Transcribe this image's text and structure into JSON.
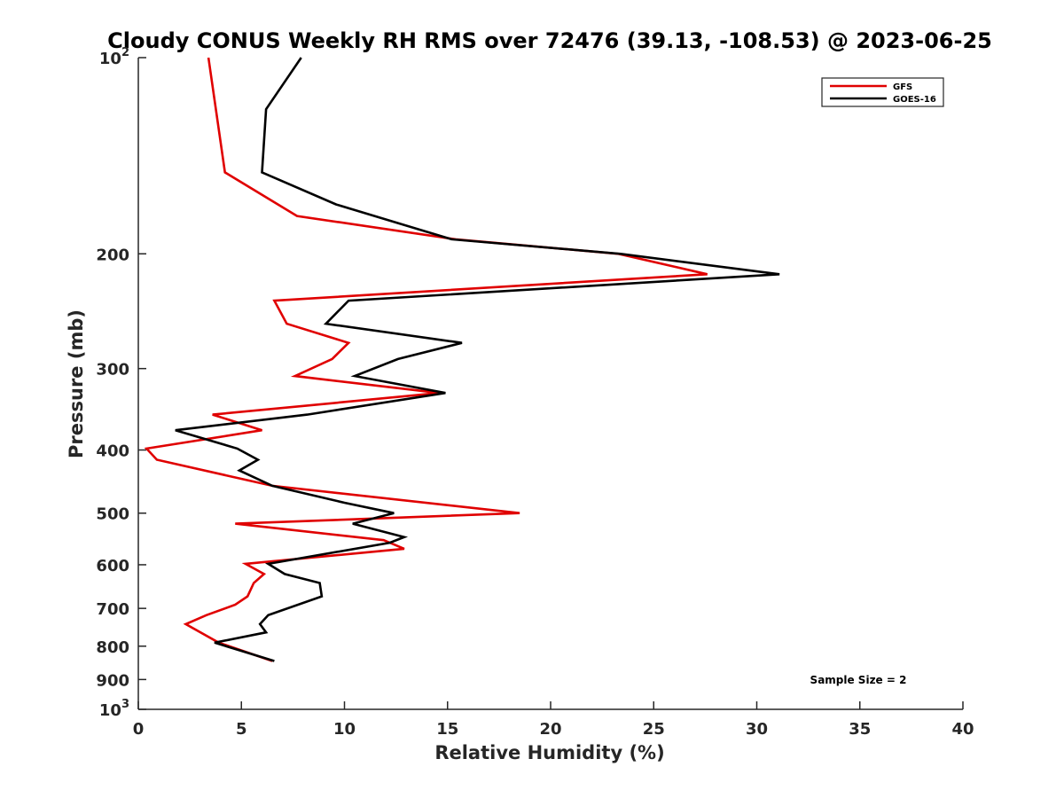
{
  "chart_data": {
    "type": "line",
    "title": "Cloudy CONUS Weekly RH RMS over 72476 (39.13, -108.53) @ 2023-06-25",
    "xlabel": "Relative Humidity (%)",
    "ylabel": "Pressure (mb)",
    "xlim": [
      0,
      40
    ],
    "ylim": [
      100,
      1000
    ],
    "y_scale": "log",
    "y_reversed": true,
    "grid": false,
    "legend_position": "top-right",
    "x_ticks": [
      "0",
      "5",
      "10",
      "15",
      "20",
      "25",
      "30",
      "35",
      "40"
    ],
    "y_ticks": [
      {
        "value": 100,
        "base": "10",
        "exp": "2"
      },
      {
        "value": 200,
        "label": "200"
      },
      {
        "value": 300,
        "label": "300"
      },
      {
        "value": 400,
        "label": "400"
      },
      {
        "value": 500,
        "label": "500"
      },
      {
        "value": 600,
        "label": "600"
      },
      {
        "value": 700,
        "label": "700"
      },
      {
        "value": 800,
        "label": "800"
      },
      {
        "value": 900,
        "label": "900"
      },
      {
        "value": 1000,
        "base": "10",
        "exp": "3"
      }
    ],
    "series": [
      {
        "name": "GFS",
        "color": "#e00000",
        "points": [
          [
            3.4,
            100
          ],
          [
            4.2,
            150
          ],
          [
            7.7,
            175
          ],
          [
            15.4,
            190
          ],
          [
            23.3,
            200
          ],
          [
            27.6,
            215
          ],
          [
            6.6,
            236
          ],
          [
            7.2,
            256
          ],
          [
            10.2,
            274
          ],
          [
            9.4,
            290
          ],
          [
            7.6,
            308
          ],
          [
            14.6,
            327
          ],
          [
            3.6,
            353
          ],
          [
            6.0,
            373
          ],
          [
            0.4,
            398
          ],
          [
            0.9,
            414
          ],
          [
            6.5,
            454
          ],
          [
            18.5,
            500
          ],
          [
            4.7,
            519
          ],
          [
            11.9,
            550
          ],
          [
            12.9,
            567
          ],
          [
            5.2,
            598
          ],
          [
            6.1,
            620
          ],
          [
            5.6,
            640
          ],
          [
            5.3,
            671
          ],
          [
            4.7,
            691
          ],
          [
            3.3,
            717
          ],
          [
            2.3,
            740
          ],
          [
            3.9,
            790
          ],
          [
            6.5,
            843
          ]
        ]
      },
      {
        "name": "GOES-16",
        "color": "#000000",
        "points": [
          [
            7.9,
            100
          ],
          [
            6.2,
            120
          ],
          [
            6.0,
            150
          ],
          [
            9.6,
            168
          ],
          [
            15.2,
            190
          ],
          [
            23.4,
            200
          ],
          [
            31.1,
            215
          ],
          [
            10.2,
            236
          ],
          [
            9.1,
            256
          ],
          [
            15.7,
            274
          ],
          [
            12.6,
            290
          ],
          [
            10.5,
            308
          ],
          [
            14.9,
            327
          ],
          [
            8.2,
            353
          ],
          [
            1.8,
            373
          ],
          [
            4.8,
            398
          ],
          [
            5.8,
            414
          ],
          [
            4.9,
            430
          ],
          [
            6.5,
            454
          ],
          [
            10.0,
            482
          ],
          [
            12.4,
            500
          ],
          [
            10.4,
            519
          ],
          [
            12.9,
            544
          ],
          [
            12.2,
            555
          ],
          [
            6.3,
            598
          ],
          [
            7.1,
            620
          ],
          [
            8.8,
            640
          ],
          [
            8.9,
            671
          ],
          [
            6.3,
            717
          ],
          [
            5.9,
            740
          ],
          [
            6.2,
            762
          ],
          [
            3.7,
            790
          ],
          [
            6.6,
            843
          ]
        ]
      }
    ],
    "annotation": "Sample Size = 2"
  }
}
